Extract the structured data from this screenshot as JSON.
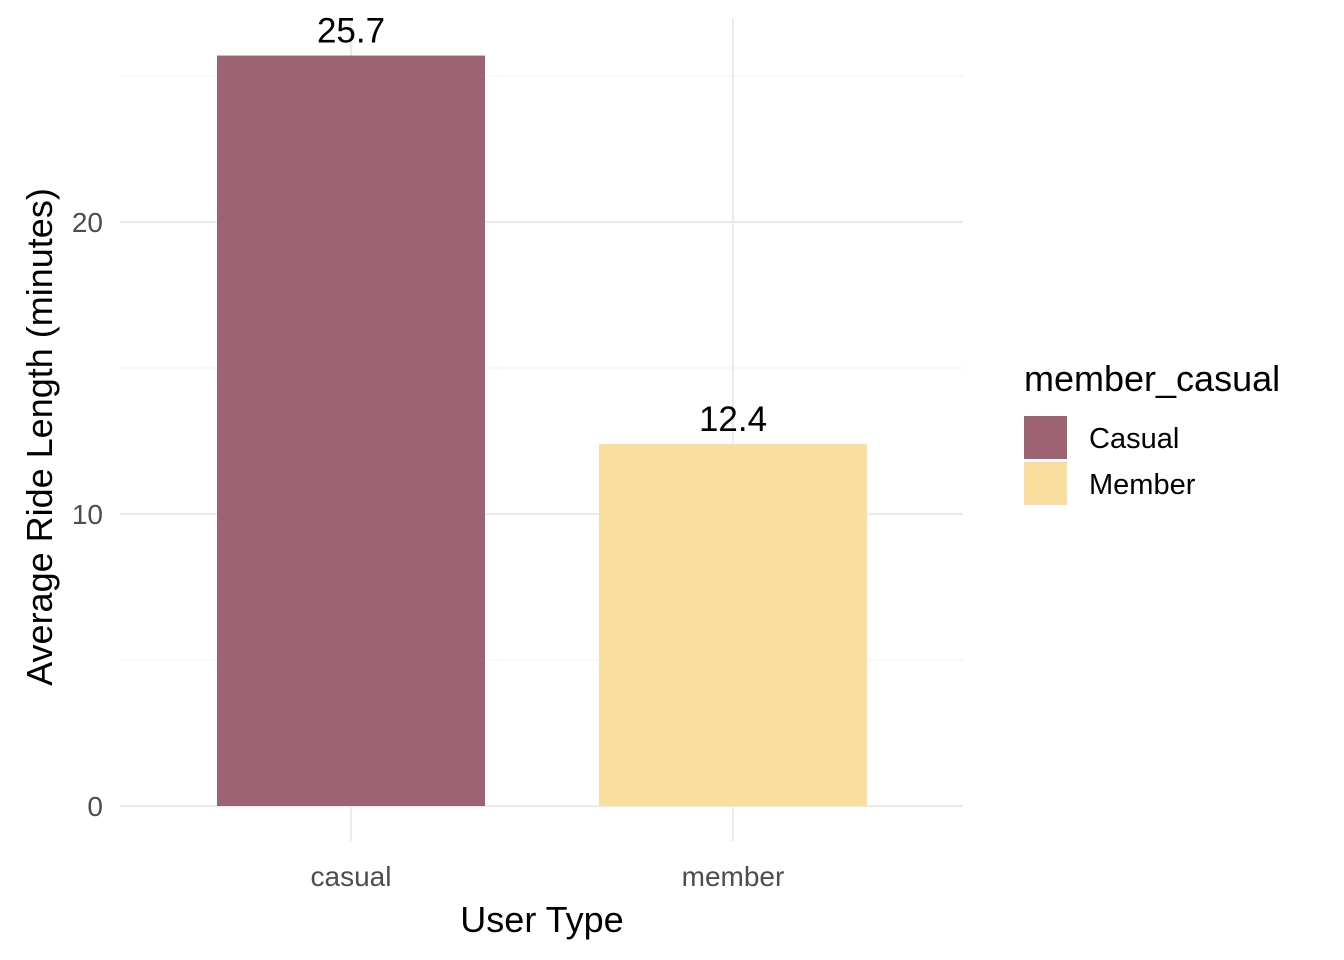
{
  "chart_data": {
    "type": "bar",
    "categories": [
      "casual",
      "member"
    ],
    "values": [
      25.7,
      12.4
    ],
    "data_labels": [
      "25.7",
      "12.4"
    ],
    "colors": [
      "#9e6372",
      "#f9dea0"
    ],
    "xlabel": "User Type",
    "ylabel": "Average Ride Length (minutes)",
    "ylim": [
      0,
      26.99
    ],
    "yticks": [
      0,
      10,
      20
    ],
    "ytick_labels": [
      "0",
      "10",
      "20"
    ],
    "grid": true,
    "legend": {
      "title": "member_casual",
      "position": "right",
      "entries": [
        {
          "label": "Casual",
          "color": "#9e6372"
        },
        {
          "label": "Member",
          "color": "#f9dea0"
        }
      ]
    }
  }
}
